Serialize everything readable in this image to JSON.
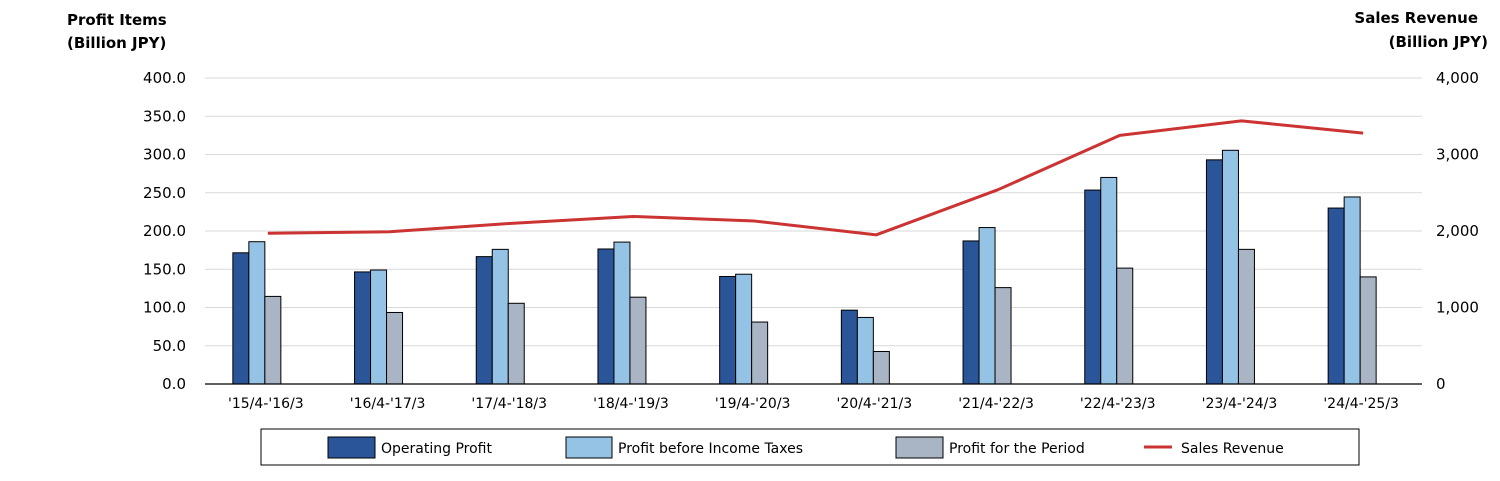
{
  "chart_data": {
    "type": "bar",
    "left_axis_title": [
      "Profit Items",
      "(Billion JPY)"
    ],
    "right_axis_title": [
      "Sales Revenue",
      "(Billion JPY)"
    ],
    "categories": [
      "'15/4-'16/3",
      "'16/4-'17/3",
      "'17/4-'18/3",
      "'18/4-'19/3",
      "'19/4-'20/3",
      "'20/4-'21/3",
      "'21/4-'22/3",
      "'22/4-'23/3",
      "'23/4-'24/3",
      "'24/4-'25/3"
    ],
    "left_ylim": [
      0,
      400
    ],
    "left_ticks": [
      "0.0",
      "50.0",
      "100.0",
      "150.0",
      "200.0",
      "250.0",
      "300.0",
      "350.0",
      "400.0"
    ],
    "right_ylim": [
      0,
      4000
    ],
    "right_ticks": [
      "0",
      "1,000",
      "2,000",
      "3,000",
      "4,000"
    ],
    "grid": true,
    "legend_position": "bottom",
    "series": [
      {
        "name": "Operating Profit",
        "type": "bar",
        "axis": "left",
        "color": "#2a5599",
        "values": [
          171.5,
          146.5,
          166.5,
          176.5,
          140.5,
          96.5,
          187.0,
          253.5,
          293.0,
          230.0
        ]
      },
      {
        "name": "Profit before Income Taxes",
        "type": "bar",
        "axis": "left",
        "color": "#95c3e6",
        "values": [
          186.0,
          149.0,
          176.0,
          185.5,
          143.5,
          87.0,
          204.5,
          270.0,
          305.5,
          244.5
        ]
      },
      {
        "name": "Profit for the Period",
        "type": "bar",
        "axis": "left",
        "color": "#a9b4c4",
        "values": [
          114.5,
          93.5,
          105.5,
          113.5,
          81.0,
          42.5,
          126.0,
          151.5,
          176.0,
          140.0
        ]
      },
      {
        "name": "Sales Revenue",
        "type": "line",
        "axis": "right",
        "color": "#cc3333",
        "values": [
          1970,
          1990,
          2100,
          2190,
          2130,
          1950,
          2540,
          3250,
          3440,
          3280
        ]
      }
    ]
  }
}
